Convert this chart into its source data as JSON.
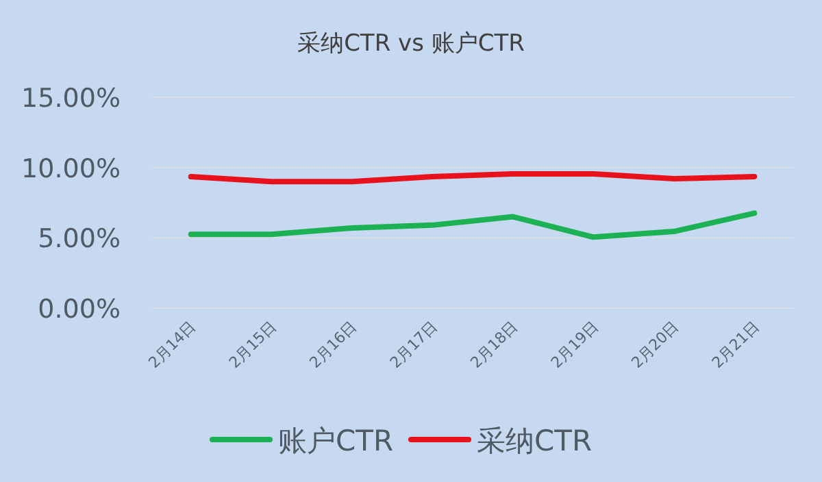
{
  "chart_data": {
    "type": "line",
    "title": "采纳CTR vs 账户CTR",
    "categories": [
      "2月14日",
      "2月15日",
      "2月16日",
      "2月17日",
      "2月18日",
      "2月19日",
      "2月20日",
      "2月21日"
    ],
    "series": [
      {
        "name": "账户CTR",
        "color": "#1db155",
        "values": [
          5.25,
          5.25,
          5.7,
          5.9,
          6.5,
          5.05,
          5.45,
          6.75
        ]
      },
      {
        "name": "采纳CTR",
        "color": "#e8121c",
        "values": [
          9.35,
          9.0,
          9.0,
          9.35,
          9.55,
          9.55,
          9.2,
          9.35
        ]
      }
    ],
    "ylim": [
      0,
      15
    ],
    "yticks": [
      {
        "value": 0,
        "label": "0.00%"
      },
      {
        "value": 5,
        "label": "5.00%"
      },
      {
        "value": 10,
        "label": "10.00%"
      },
      {
        "value": 15,
        "label": "15.00%"
      }
    ],
    "grid": "y",
    "legend": "bottom",
    "marker": "none",
    "line_style": "solid"
  }
}
